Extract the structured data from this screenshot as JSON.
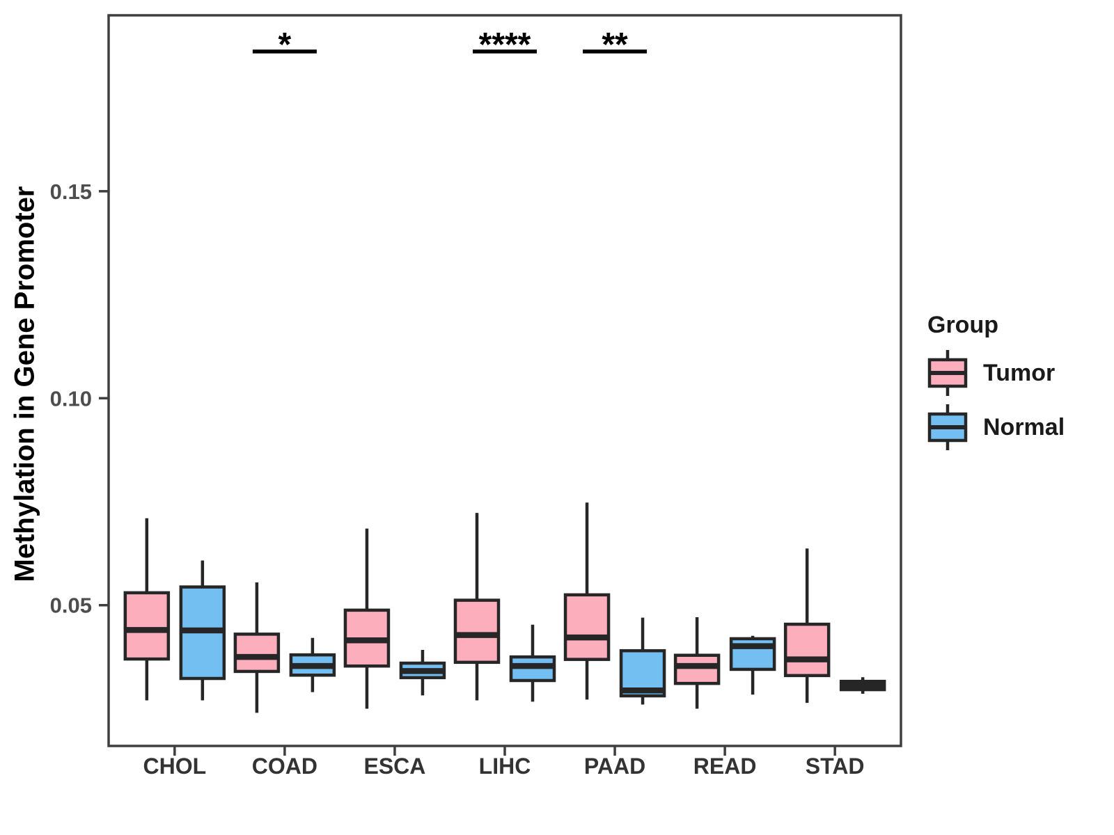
{
  "figure": {
    "background": "#ffffff"
  },
  "legend": {
    "title": "Group",
    "items": [
      {
        "label": "Tumor",
        "color": "#FCAEBD"
      },
      {
        "label": "Normal",
        "color": "#73BFF2"
      }
    ]
  },
  "style": {
    "box_stroke": "#262626",
    "panel_stroke": "#3F3F3F",
    "y_tick_label_color": "#4D4D4D",
    "x_tick_label_color": "#333333",
    "significance_color": "#000000"
  },
  "chart_data": {
    "type": "box",
    "title": "",
    "xlabel": "",
    "ylabel": "Methylation in Gene Promoter",
    "categories": [
      "CHOL",
      "COAD",
      "ESCA",
      "LIHC",
      "PAAD",
      "READ",
      "STAD"
    ],
    "y_ticks": [
      0.05,
      0.1,
      0.15
    ],
    "ylim": [
      0.016,
      0.1925
    ],
    "grid": false,
    "legend_position": "right",
    "series": [
      {
        "name": "Tumor",
        "color": "#FCAEBD",
        "boxes": [
          {
            "category": "CHOL",
            "min": 0.027,
            "q1": 0.037,
            "median": 0.044,
            "q3": 0.053,
            "max": 0.071
          },
          {
            "category": "COAD",
            "min": 0.024,
            "q1": 0.034,
            "median": 0.0375,
            "q3": 0.043,
            "max": 0.0555
          },
          {
            "category": "ESCA",
            "min": 0.025,
            "q1": 0.0353,
            "median": 0.0415,
            "q3": 0.0488,
            "max": 0.0685
          },
          {
            "category": "LIHC",
            "min": 0.027,
            "q1": 0.0362,
            "median": 0.0428,
            "q3": 0.0512,
            "max": 0.0723
          },
          {
            "category": "PAAD",
            "min": 0.0272,
            "q1": 0.0369,
            "median": 0.0422,
            "q3": 0.0525,
            "max": 0.0748
          },
          {
            "category": "READ",
            "min": 0.025,
            "q1": 0.0311,
            "median": 0.0353,
            "q3": 0.0379,
            "max": 0.0471
          },
          {
            "category": "STAD",
            "min": 0.0264,
            "q1": 0.033,
            "median": 0.0369,
            "q3": 0.0454,
            "max": 0.0637
          }
        ]
      },
      {
        "name": "Normal",
        "color": "#73BFF2",
        "boxes": [
          {
            "category": "CHOL",
            "min": 0.027,
            "q1": 0.0323,
            "median": 0.0439,
            "q3": 0.0544,
            "max": 0.0608
          },
          {
            "category": "COAD",
            "min": 0.029,
            "q1": 0.0331,
            "median": 0.0353,
            "q3": 0.038,
            "max": 0.0421
          },
          {
            "category": "ESCA",
            "min": 0.0282,
            "q1": 0.0325,
            "median": 0.0341,
            "q3": 0.036,
            "max": 0.0392
          },
          {
            "category": "LIHC",
            "min": 0.0267,
            "q1": 0.0318,
            "median": 0.0353,
            "q3": 0.0375,
            "max": 0.0453
          },
          {
            "category": "PAAD",
            "min": 0.026,
            "q1": 0.0281,
            "median": 0.0294,
            "q3": 0.039,
            "max": 0.047
          },
          {
            "category": "READ",
            "min": 0.0284,
            "q1": 0.0345,
            "median": 0.0401,
            "q3": 0.0419,
            "max": 0.0426
          },
          {
            "category": "STAD",
            "min": 0.0286,
            "q1": 0.0296,
            "median": 0.0306,
            "q3": 0.0316,
            "max": 0.0326
          }
        ]
      }
    ],
    "significance": [
      {
        "category": "COAD",
        "label": "*"
      },
      {
        "category": "LIHC",
        "label": "****"
      },
      {
        "category": "PAAD",
        "label": "**"
      }
    ]
  }
}
